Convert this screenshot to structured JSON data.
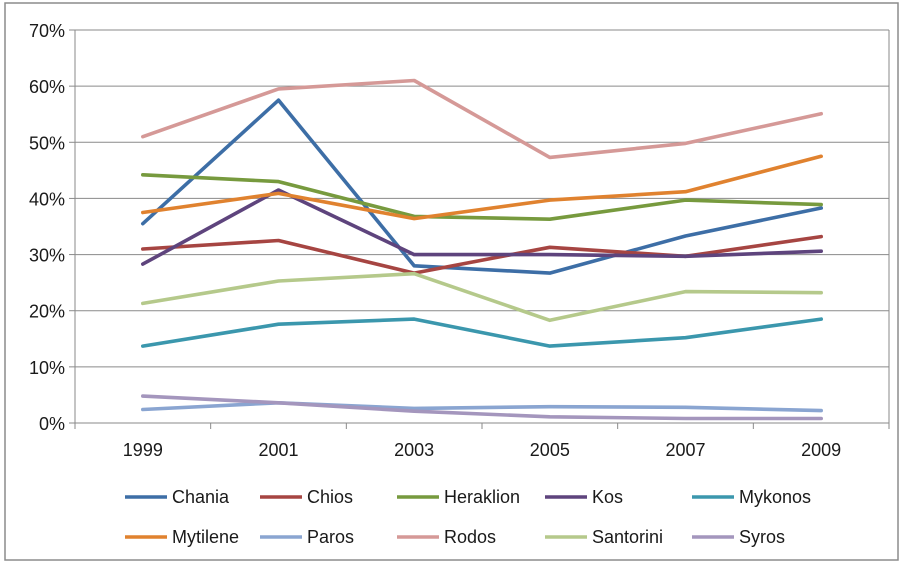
{
  "chart_data": {
    "type": "line",
    "title": "",
    "xlabel": "",
    "ylabel": "",
    "categories": [
      "1999",
      "2001",
      "2003",
      "2005",
      "2007",
      "2009"
    ],
    "y_ticks": [
      "0%",
      "10%",
      "20%",
      "30%",
      "40%",
      "50%",
      "60%",
      "70%"
    ],
    "ylim": [
      0,
      70
    ],
    "y_unit": "%",
    "grid": "horizontal",
    "legend_position": "bottom",
    "series": [
      {
        "name": "Chania",
        "color": "#3d6ea6",
        "values": [
          35.5,
          57.5,
          28,
          26.7,
          33.3,
          38.3
        ]
      },
      {
        "name": "Chios",
        "color": "#a64542",
        "values": [
          31,
          32.5,
          26.7,
          31.3,
          29.7,
          33.2
        ]
      },
      {
        "name": "Heraklion",
        "color": "#779a3e",
        "values": [
          44.2,
          43,
          36.8,
          36.3,
          39.7,
          38.9
        ]
      },
      {
        "name": "Kos",
        "color": "#5e447d",
        "values": [
          28.3,
          41.5,
          30,
          30,
          29.7,
          30.6
        ]
      },
      {
        "name": "Mykonos",
        "color": "#3b97ad",
        "values": [
          13.7,
          17.6,
          18.5,
          13.7,
          15.2,
          18.5
        ]
      },
      {
        "name": "Mytilene",
        "color": "#e0822f",
        "values": [
          37.5,
          40.9,
          36.4,
          39.7,
          41.2,
          47.5
        ]
      },
      {
        "name": "Paros",
        "color": "#8aa5d1",
        "values": [
          2.4,
          3.6,
          2.6,
          2.9,
          2.8,
          2.2
        ]
      },
      {
        "name": "Rodos",
        "color": "#d59997",
        "values": [
          51,
          59.5,
          61,
          47.3,
          49.8,
          55.1
        ]
      },
      {
        "name": "Santorini",
        "color": "#b5c98b",
        "values": [
          21.3,
          25.3,
          26.6,
          18.3,
          23.4,
          23.2
        ]
      },
      {
        "name": "Syros",
        "color": "#a496bd",
        "values": [
          4.8,
          3.6,
          2.1,
          1.1,
          0.8,
          0.8
        ]
      }
    ]
  }
}
